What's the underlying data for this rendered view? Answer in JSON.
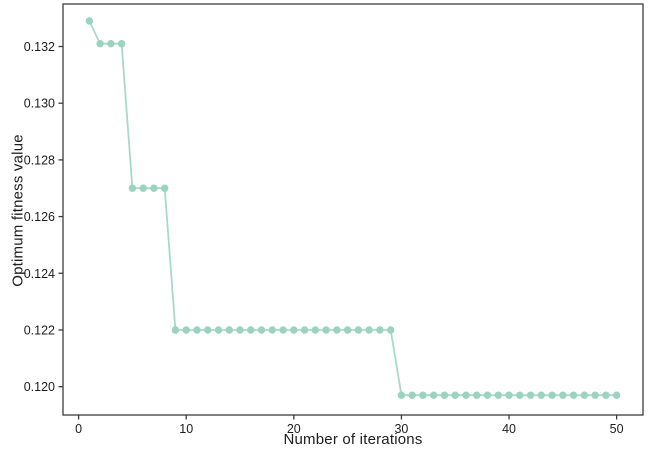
{
  "figure": {
    "background": "#ffffff",
    "axis_color": "#3c3c3c",
    "text_color": "#1d1d1d",
    "line_color": "#a9d9c9",
    "marker_color": "#9bd2c0"
  },
  "chart_data": {
    "type": "line",
    "title": "",
    "xlabel": "Number of iterations",
    "ylabel": "Optimum fitness value",
    "marker": "o",
    "grid": false,
    "legend": null,
    "xlim": [
      -1.45,
      52.45
    ],
    "ylim": [
      0.119,
      0.1335
    ],
    "xticks": [
      {
        "v": 0,
        "label": "0"
      },
      {
        "v": 10,
        "label": "10"
      },
      {
        "v": 20,
        "label": "20"
      },
      {
        "v": 30,
        "label": "30"
      },
      {
        "v": 40,
        "label": "40"
      },
      {
        "v": 50,
        "label": "50"
      }
    ],
    "yticks": [
      {
        "v": 0.12,
        "label": "0.120"
      },
      {
        "v": 0.122,
        "label": "0.122"
      },
      {
        "v": 0.124,
        "label": "0.124"
      },
      {
        "v": 0.126,
        "label": "0.126"
      },
      {
        "v": 0.128,
        "label": "0.128"
      },
      {
        "v": 0.13,
        "label": "0.130"
      },
      {
        "v": 0.132,
        "label": "0.132"
      }
    ],
    "x": [
      1,
      2,
      3,
      4,
      5,
      6,
      7,
      8,
      9,
      10,
      11,
      12,
      13,
      14,
      15,
      16,
      17,
      18,
      19,
      20,
      21,
      22,
      23,
      24,
      25,
      26,
      27,
      28,
      29,
      30,
      31,
      32,
      33,
      34,
      35,
      36,
      37,
      38,
      39,
      40,
      41,
      42,
      43,
      44,
      45,
      46,
      47,
      48,
      49,
      50
    ],
    "y": [
      0.1329,
      0.1321,
      0.1321,
      0.1321,
      0.127,
      0.127,
      0.127,
      0.127,
      0.122,
      0.122,
      0.122,
      0.122,
      0.122,
      0.122,
      0.122,
      0.122,
      0.122,
      0.122,
      0.122,
      0.122,
      0.122,
      0.122,
      0.122,
      0.122,
      0.122,
      0.122,
      0.122,
      0.122,
      0.122,
      0.1197,
      0.1197,
      0.1197,
      0.1197,
      0.1197,
      0.1197,
      0.1197,
      0.1197,
      0.1197,
      0.1197,
      0.1197,
      0.1197,
      0.1197,
      0.1197,
      0.1197,
      0.1197,
      0.1197,
      0.1197,
      0.1197,
      0.1197,
      0.1197
    ]
  }
}
